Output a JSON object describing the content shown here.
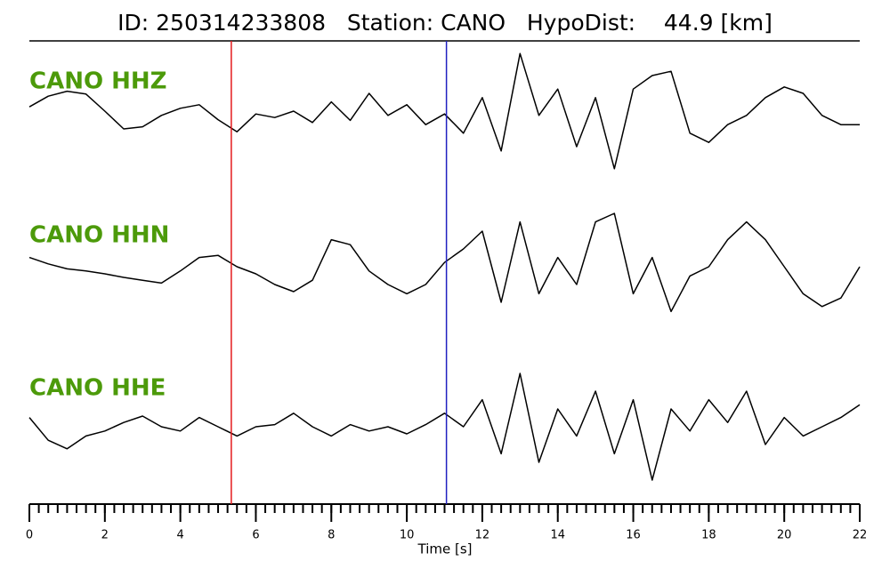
{
  "chart_data": {
    "type": "line",
    "title": "ID: 250314233808   Station: CANO   HypoDist:    44.9 [km]",
    "xlabel": "Time [s]",
    "xlim": [
      0,
      22
    ],
    "xticks": [
      0,
      2,
      4,
      6,
      8,
      10,
      12,
      14,
      16,
      18,
      20,
      22
    ],
    "xticks_minor": [
      0,
      0.25,
      0.5,
      0.75,
      1,
      1.25,
      1.5,
      1.75,
      2,
      2.25,
      2.5,
      2.75,
      3,
      3.25,
      3.5,
      3.75,
      4,
      4.25,
      4.5,
      4.75,
      5,
      5.25,
      5.5,
      5.75,
      6,
      6.25,
      6.5,
      6.75,
      7,
      7.25,
      7.5,
      7.75,
      8,
      8.25,
      8.5,
      8.75,
      9,
      9.25,
      9.5,
      9.75,
      10,
      10.25,
      10.5,
      10.75,
      11,
      11.25,
      11.5,
      11.75,
      12,
      12.25,
      12.5,
      12.75,
      13,
      13.25,
      13.5,
      13.75,
      14,
      14.25,
      14.5,
      14.75,
      15,
      15.25,
      15.5,
      15.75,
      16,
      16.25,
      16.5,
      16.75,
      17,
      17.25,
      17.5,
      17.75,
      18,
      18.25,
      18.5,
      18.75,
      19,
      19.25,
      19.5,
      19.75,
      20,
      20.25,
      20.5,
      20.75,
      21,
      21.25,
      21.5,
      21.75,
      22
    ],
    "ylim": [
      -1,
      1
    ],
    "label_color": "#4c9a0a",
    "x": [
      0,
      0.5,
      1,
      1.5,
      2,
      2.5,
      3,
      3.5,
      4,
      4.5,
      5,
      5.5,
      6,
      6.5,
      7,
      7.5,
      8,
      8.5,
      9,
      9.5,
      10,
      10.5,
      11,
      11.5,
      12,
      12.5,
      13,
      13.5,
      14,
      14.5,
      15,
      15.5,
      16,
      16.5,
      17,
      17.5,
      18,
      18.5,
      19,
      19.5,
      20,
      20.5,
      21,
      21.5,
      22
    ],
    "series": [
      {
        "name": "CANO HHZ",
        "color": "#000000",
        "values": [
          0.06,
          0.21,
          0.28,
          0.24,
          0,
          -0.25,
          -0.22,
          -0.06,
          0.04,
          0.09,
          -0.12,
          -0.29,
          -0.04,
          -0.09,
          0,
          -0.16,
          0.13,
          -0.13,
          0.25,
          -0.06,
          0.09,
          -0.19,
          -0.04,
          -0.31,
          0.19,
          -0.56,
          0.81,
          -0.06,
          0.31,
          -0.5,
          0.19,
          -0.81,
          0.31,
          0.5,
          0.56,
          -0.31,
          -0.44,
          -0.19,
          -0.06,
          0.19,
          0.34,
          0.25,
          -0.06,
          -0.19,
          -0.19
        ]
      },
      {
        "name": "CANO HHN",
        "color": "#000000",
        "values": [
          0.13,
          0.04,
          -0.03,
          -0.06,
          -0.1,
          -0.15,
          -0.19,
          -0.23,
          -0.06,
          0.13,
          0.16,
          0,
          -0.1,
          -0.25,
          -0.35,
          -0.19,
          0.38,
          0.31,
          -0.06,
          -0.25,
          -0.38,
          -0.25,
          0.06,
          0.25,
          0.5,
          -0.5,
          0.63,
          -0.38,
          0.13,
          -0.25,
          0.63,
          0.75,
          -0.38,
          0.13,
          -0.63,
          -0.13,
          0,
          0.38,
          0.63,
          0.38,
          0,
          -0.38,
          -0.56,
          -0.44,
          0
        ]
      },
      {
        "name": "CANO HHE",
        "color": "#000000",
        "values": [
          0.13,
          -0.19,
          -0.31,
          -0.13,
          -0.06,
          0.06,
          0.15,
          0,
          -0.06,
          0.13,
          0,
          -0.13,
          0,
          0.03,
          0.19,
          0,
          -0.13,
          0.03,
          -0.06,
          0,
          -0.1,
          0.03,
          0.19,
          0,
          0.38,
          -0.38,
          0.75,
          -0.5,
          0.25,
          -0.13,
          0.5,
          -0.38,
          0.38,
          -0.75,
          0.25,
          -0.06,
          0.38,
          0.06,
          0.5,
          -0.25,
          0.13,
          -0.13,
          0,
          0.13,
          0.31
        ]
      }
    ],
    "markers": [
      {
        "x": 5.35,
        "color": "#e41a1c"
      },
      {
        "x": 11.05,
        "color": "#2020c0"
      }
    ]
  }
}
